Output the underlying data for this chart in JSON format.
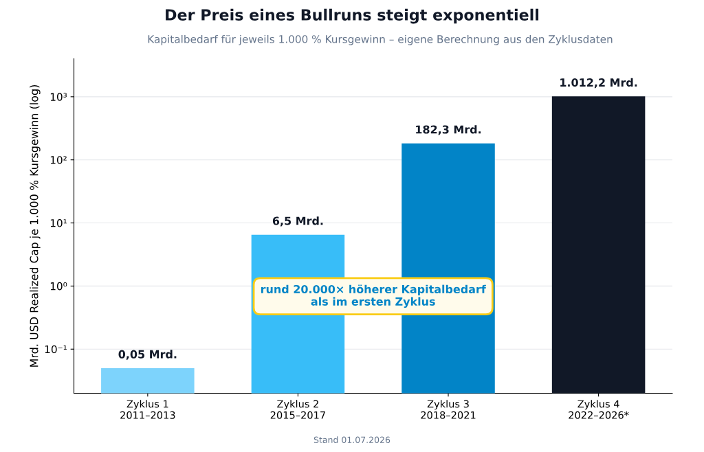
{
  "chart_data": {
    "type": "bar",
    "title": "Der Preis eines Bullruns steigt exponentiell",
    "subtitle": "Kapitalbedarf für jeweils 1.000 % Kursgewinn – eigene Berechnung aus den Zyklusdaten",
    "ylabel": "Mrd. USD Realized Cap je 1.000 % Kursgewinn (log)",
    "categories": [
      "Zyklus 1\n2011–2013",
      "Zyklus 2\n2015–2017",
      "Zyklus 3\n2018–2021",
      "Zyklus 4\n2022–2026*"
    ],
    "values": [
      0.05,
      6.5,
      182.3,
      1012.2
    ],
    "colors": [
      "#7dd3fc",
      "#38bdf8",
      "#0284c7",
      "#111827"
    ],
    "value_labels": [
      "0,05 Mrd.",
      "6,5 Mrd.",
      "182,3 Mrd.",
      "1.012,2 Mrd."
    ],
    "log": true,
    "ylim": [
      0.02,
      4000
    ],
    "yticks": [
      {
        "value": 0.1,
        "label": "10⁻¹"
      },
      {
        "value": 1,
        "label": "10⁰"
      },
      {
        "value": 10,
        "label": "10¹"
      },
      {
        "value": 100,
        "label": "10²"
      },
      {
        "value": 1000,
        "label": "10³"
      }
    ],
    "grid": "y",
    "annotations": [
      "rund 20.000× höherer Kapitalbedarf\nals im ersten Zyklus",
      "Stand 01.07.2026"
    ]
  }
}
